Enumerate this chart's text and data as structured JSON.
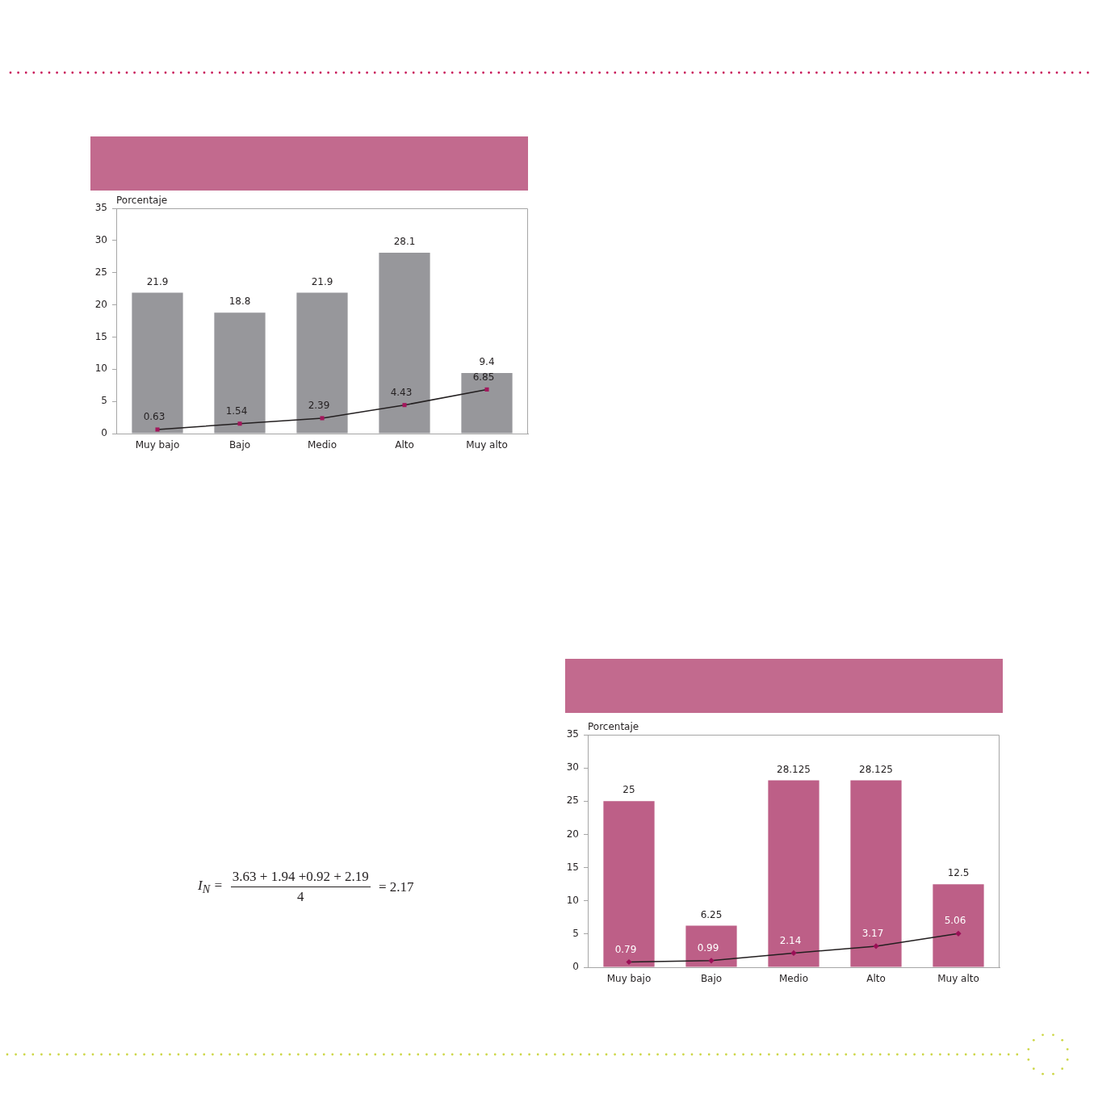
{
  "chart_data": [
    {
      "type": "bar",
      "ylabel": "Porcentaje",
      "categories": [
        "Muy bajo",
        "Bajo",
        "Medio",
        "Alto",
        "Muy alto"
      ],
      "series": [
        {
          "type": "bar",
          "color": "#97979b",
          "values": [
            21.9,
            18.8,
            21.9,
            28.1,
            9.4
          ]
        },
        {
          "type": "line",
          "color": "#231f20",
          "colors": [
            "#a3175c",
            "#a3175c",
            "#a3175c",
            "#a3175c",
            "#a3175c"
          ],
          "marker": "square",
          "values": [
            0.63,
            1.54,
            2.39,
            4.43,
            6.85
          ]
        }
      ],
      "ylim": [
        0,
        35
      ],
      "yticks": [
        0,
        5,
        10,
        15,
        20,
        25,
        30,
        35
      ],
      "data_labels": true
    },
    {
      "type": "bar",
      "ylabel": "Porcentaje",
      "categories": [
        "Muy bajo",
        "Bajo",
        "Medio",
        "Alto",
        "Muy alto"
      ],
      "series": [
        {
          "type": "bar",
          "color": "#bd5f87",
          "values": [
            25,
            6.25,
            28.125,
            28.125,
            12.5
          ]
        },
        {
          "type": "line",
          "color": "#231f20",
          "colors": [
            "#9b0f57",
            "#9b0f57",
            "#9b0f57",
            "#9b0f57",
            "#9b0f57"
          ],
          "marker": "diamond",
          "values": [
            0.79,
            0.99,
            2.14,
            3.17,
            5.06
          ]
        }
      ],
      "ylim": [
        0,
        35
      ],
      "yticks": [
        0,
        5,
        10,
        15,
        20,
        25,
        30,
        35
      ],
      "data_labels": true
    },
    {
      "type": "other",
      "annotations": [
        "I$_{N}$ =",
        "3.63 + 1.94 +0.92 + 2.19",
        "4",
        "= 2.17"
      ]
    }
  ]
}
